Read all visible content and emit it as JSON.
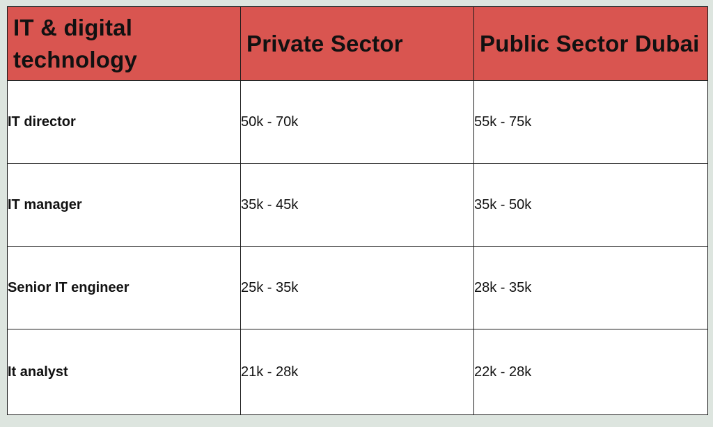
{
  "table": {
    "headers": [
      "IT & digital technology",
      "Private Sector",
      "Public Sector Dubai"
    ],
    "rows": [
      {
        "role": "IT director",
        "private": "50k - 70k",
        "public": "55k - 75k"
      },
      {
        "role": "IT manager",
        "private": "35k - 45k",
        "public": "35k - 50k"
      },
      {
        "role": "Senior IT engineer",
        "private": "25k - 35k",
        "public": "28k - 35k"
      },
      {
        "role": "It analyst",
        "private": "21k - 28k",
        "public": "22k - 28k"
      }
    ]
  },
  "colors": {
    "header_background": "#d95550",
    "page_background": "#dde5df",
    "border": "#1a1a1a"
  }
}
